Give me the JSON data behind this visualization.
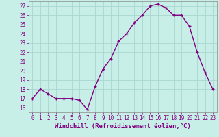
{
  "x": [
    0,
    1,
    2,
    3,
    4,
    5,
    6,
    7,
    8,
    9,
    10,
    11,
    12,
    13,
    14,
    15,
    16,
    17,
    18,
    19,
    20,
    21,
    22,
    23
  ],
  "y": [
    17,
    18,
    17.5,
    17,
    17,
    17,
    16.8,
    15.8,
    18.3,
    20.2,
    21.3,
    23.2,
    24.0,
    25.2,
    26.0,
    27.0,
    27.2,
    26.8,
    26.0,
    26.0,
    24.8,
    22.0,
    19.8,
    18.0
  ],
  "line_color": "#800080",
  "marker": "+",
  "bg_color": "#c8eee8",
  "grid_color": "#a8d8d0",
  "xlabel": "Windchill (Refroidissement éolien,°C)",
  "ylabel": "",
  "yticks": [
    16,
    17,
    18,
    19,
    20,
    21,
    22,
    23,
    24,
    25,
    26,
    27
  ],
  "xticks": [
    0,
    1,
    2,
    3,
    4,
    5,
    6,
    7,
    8,
    9,
    10,
    11,
    12,
    13,
    14,
    15,
    16,
    17,
    18,
    19,
    20,
    21,
    22,
    23
  ],
  "ylim": [
    15.5,
    27.5
  ],
  "xlim": [
    -0.5,
    23.5
  ],
  "tick_color": "#800080",
  "tick_fontsize": 5.5,
  "xlabel_fontsize": 6.5,
  "linewidth": 1.0,
  "markersize": 3.5,
  "markeredgewidth": 1.0
}
